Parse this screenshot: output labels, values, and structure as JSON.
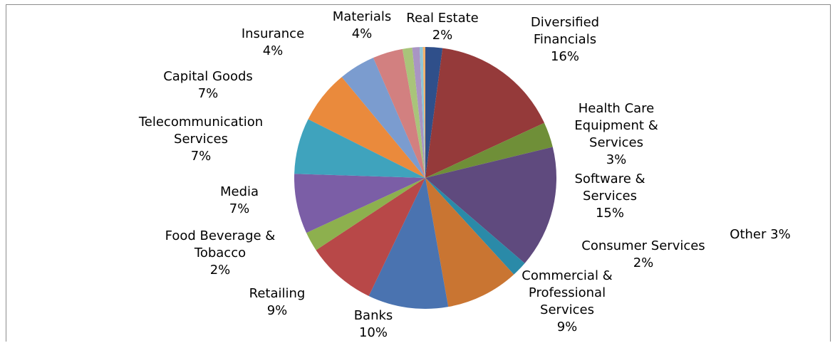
{
  "chart_data": {
    "type": "pie",
    "title": "",
    "slices": [
      {
        "label": [
          "Real Estate"
        ],
        "pct": "2%",
        "value": 2.1,
        "color": "#2f4f8a"
      },
      {
        "label": [
          "Diversified",
          "Financials"
        ],
        "pct": "16%",
        "value": 16.0,
        "color": "#953a3a"
      },
      {
        "label": [
          "Health Care",
          "Equipment &",
          "Services"
        ],
        "pct": "3%",
        "value": 3.1,
        "color": "#6f8f38"
      },
      {
        "label": [
          "Software &",
          "Services"
        ],
        "pct": "15%",
        "value": 15.1,
        "color": "#5f4a7e"
      },
      {
        "label": [
          "Consumer Services"
        ],
        "pct": "2%",
        "value": 1.9,
        "color": "#2a8aa8"
      },
      {
        "label": [
          "Commercial &",
          "Professional",
          "Services"
        ],
        "pct": "9%",
        "value": 9.0,
        "color": "#c97532"
      },
      {
        "label": [
          "Banks"
        ],
        "pct": "10%",
        "value": 9.9,
        "color": "#4a73b0"
      },
      {
        "label": [
          "Retailing"
        ],
        "pct": "9%",
        "value": 8.6,
        "color": "#b84848"
      },
      {
        "label": [
          "Food Beverage &",
          "Tobacco"
        ],
        "pct": "2%",
        "value": 2.4,
        "color": "#8db04e"
      },
      {
        "label": [
          "Media"
        ],
        "pct": "7%",
        "value": 7.4,
        "color": "#7b5ea6"
      },
      {
        "label": [
          "Telecommunication",
          "Services"
        ],
        "pct": "7%",
        "value": 6.9,
        "color": "#3fa3bd"
      },
      {
        "label": [
          "Capital Goods"
        ],
        "pct": "7%",
        "value": 6.6,
        "color": "#ea8a3c"
      },
      {
        "label": [
          "Insurance"
        ],
        "pct": "4%",
        "value": 4.5,
        "color": "#7b9ccf"
      },
      {
        "label": [
          "Materials"
        ],
        "pct": "4%",
        "value": 3.7,
        "color": "#d28080"
      },
      {
        "label": [
          "Other"
        ],
        "pct": "3%",
        "value": 1.2,
        "color": "#a9c47a"
      },
      {
        "label": [],
        "pct": "",
        "value": 0.9,
        "color": "#a995c4"
      },
      {
        "label": [],
        "pct": "",
        "value": 0.4,
        "color": "#8fc6d6"
      },
      {
        "label": [],
        "pct": "",
        "value": 0.3,
        "color": "#f2b06c"
      }
    ]
  }
}
